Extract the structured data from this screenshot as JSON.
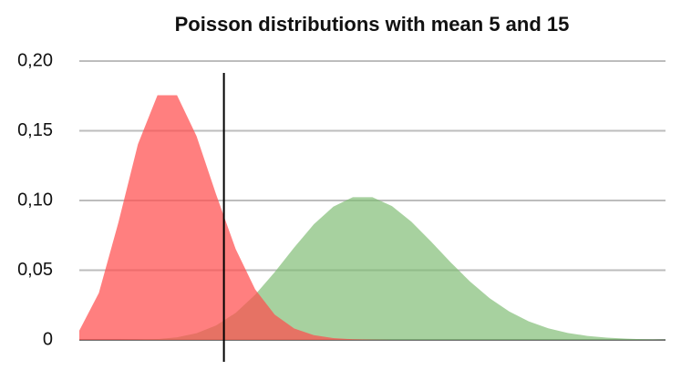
{
  "chart_data": {
    "type": "area",
    "title": "Poisson distributions with mean 5 and 15",
    "x": [
      0,
      1,
      2,
      3,
      4,
      5,
      6,
      7,
      8,
      9,
      10,
      11,
      12,
      13,
      14,
      15,
      16,
      17,
      18,
      19,
      20,
      21,
      22,
      23,
      24,
      25,
      26,
      27,
      28,
      29,
      30
    ],
    "xlim": [
      0,
      30
    ],
    "series": [
      {
        "name": "mean 15",
        "color": "#7dbb72",
        "opacity": 0.68,
        "values": [
          0,
          0,
          0,
          0.0002,
          0.0006,
          0.0019,
          0.0048,
          0.0104,
          0.0194,
          0.0324,
          0.0486,
          0.0663,
          0.0829,
          0.0956,
          0.1024,
          0.1024,
          0.096,
          0.0847,
          0.0706,
          0.0557,
          0.0418,
          0.0299,
          0.0204,
          0.0133,
          0.0083,
          0.005,
          0.0029,
          0.0016,
          0.0009,
          0.0004,
          0.0002
        ]
      },
      {
        "name": "mean 5",
        "color": "#ff4d4d",
        "opacity": 0.72,
        "values": [
          0.0067,
          0.0337,
          0.0842,
          0.1404,
          0.1755,
          0.1755,
          0.1462,
          0.1044,
          0.0653,
          0.0363,
          0.0181,
          0.0082,
          0.0034,
          0.0013,
          0.0005,
          0.0002,
          0,
          0,
          0,
          0,
          0,
          0,
          0,
          0,
          0,
          0,
          0,
          0,
          0,
          0,
          0
        ]
      }
    ],
    "vline": 7.4,
    "ylim": [
      0,
      0.2
    ],
    "yticks": [
      0,
      {
        "value": 0.05,
        "label": "0,05"
      },
      {
        "value": 0.1,
        "label": "0,10"
      },
      {
        "value": 0.15,
        "label": "0,15"
      },
      {
        "value": 0.2,
        "label": "0,20"
      }
    ],
    "grid": true
  }
}
